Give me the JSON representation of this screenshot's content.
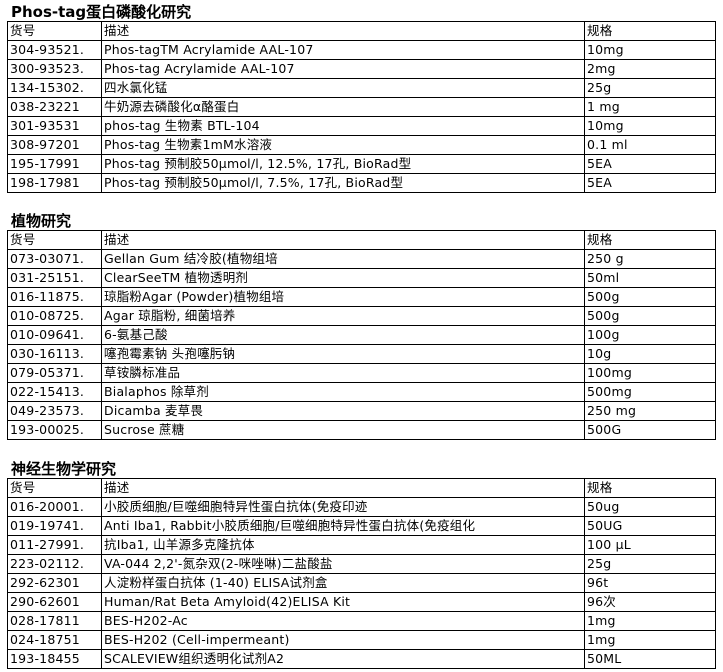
{
  "headers": {
    "code": "货号",
    "desc": "描述",
    "spec": "规格"
  },
  "sections": [
    {
      "title": "Phos-tag蛋白磷酸化研究",
      "rows": [
        [
          "304-93521.",
          "Phos-tagTM Acrylamide AAL-107",
          "10mg"
        ],
        [
          "300-93523.",
          "Phos-tag Acrylamide AAL-107",
          "2mg"
        ],
        [
          "134-15302.",
          "四水氯化锰",
          "25g"
        ],
        [
          "038-23221",
          "牛奶源去磷酸化α酪蛋白",
          "1 mg"
        ],
        [
          "301-93531",
          "phos-tag 生物素 BTL-104",
          "10mg"
        ],
        [
          "308-97201",
          "Phos-tag 生物素1mM水溶液",
          "0.1 ml"
        ],
        [
          "195-17991",
          "Phos-tag 预制胶50μmol/l, 12.5%, 17孔, BioRad型",
          "5EA"
        ],
        [
          "198-17981",
          "Phos-tag 预制胶50μmol/l, 7.5%, 17孔, BioRad型",
          "5EA"
        ]
      ]
    },
    {
      "title": "植物研究",
      "rows": [
        [
          "073-03071.",
          "Gellan Gum 结冷胶(植物组培",
          "250 g"
        ],
        [
          "031-25151.",
          "ClearSeeTM 植物透明剂",
          "50ml"
        ],
        [
          "016-11875.",
          "琼脂粉Agar (Powder)植物组培",
          "500g"
        ],
        [
          "010-08725.",
          "Agar 琼脂粉, 细菌培养",
          "500g"
        ],
        [
          "010-09641.",
          "6-氨基己酸",
          "100g"
        ],
        [
          "030-16113.",
          "噻孢霉素钠 头孢噻肟钠",
          "10g"
        ],
        [
          "079-05371.",
          "草铵膦标准品",
          "100mg"
        ],
        [
          "022-15413.",
          "Bialaphos  除草剂",
          "500mg"
        ],
        [
          "049-23573.",
          "Dicamba 麦草畏",
          "250 mg"
        ],
        [
          "193-00025.",
          "Sucrose 蔗糖",
          "500G"
        ]
      ]
    },
    {
      "title": "神经生物学研究",
      "rows": [
        [
          "016-20001.",
          "小胶质细胞/巨噬细胞特异性蛋白抗体(免疫印迹",
          "50ug"
        ],
        [
          "019-19741.",
          "Anti Iba1, Rabbit小胶质细胞/巨噬细胞特异性蛋白抗体(免疫组化",
          "50UG"
        ],
        [
          "011-27991.",
          "抗Iba1, 山羊源多克隆抗体",
          "100 μL"
        ],
        [
          "223-02112.",
          "VA-044 2,2'-氮杂双(2-咪唑啉)二盐酸盐",
          "25g"
        ],
        [
          "292-62301",
          "人淀粉样蛋白抗体 (1-40) ELISA试剂盒",
          "96t"
        ],
        [
          "290-62601",
          "Human/Rat Beta Amyloid(42)ELISA Kit",
          "96次"
        ],
        [
          "028-17811",
          "BES-H202-Ac",
          "1mg"
        ],
        [
          "024-18751",
          "BES-H202 (Cell-impermeant)",
          "1mg"
        ],
        [
          "193-18455",
          "SCALEVIEW组织透明化试剂A2",
          "50ML"
        ]
      ]
    }
  ]
}
